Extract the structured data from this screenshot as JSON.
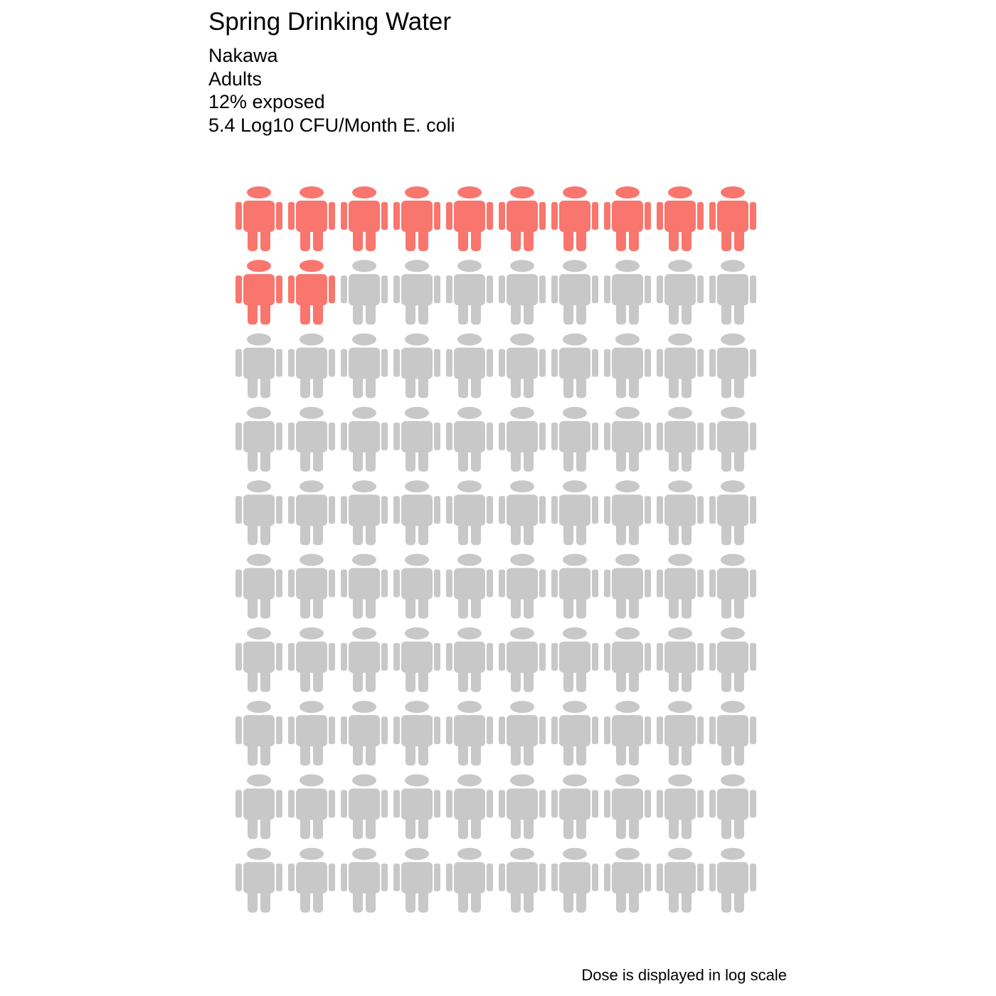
{
  "chart_data": {
    "type": "pictogram",
    "title": "Spring Drinking Water",
    "subtitle_lines": [
      "Nakawa",
      "Adults",
      "12% exposed",
      "5.4 Log10 CFU/Month E. coli"
    ],
    "caption": "Dose is displayed in log scale",
    "total_icons": 100,
    "exposed_icons": 12,
    "columns": 10,
    "rows": 10,
    "icon": "person-icon",
    "colors": {
      "exposed": "#F8766D",
      "unexposed": "#C8C8C8"
    }
  }
}
